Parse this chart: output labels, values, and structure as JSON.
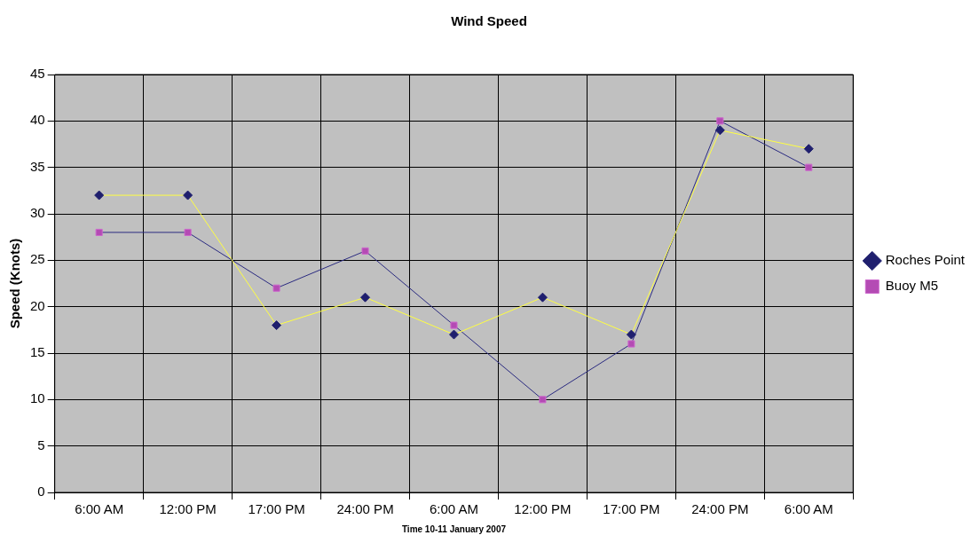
{
  "chart_data": {
    "type": "line",
    "title": "Wind Speed",
    "xlabel": "Time 10-11 January 2007",
    "ylabel": "Speed (Knots)",
    "categories": [
      "6:00 AM",
      "12:00 PM",
      "17:00 PM",
      "24:00 PM",
      "6:00 AM",
      "12:00 PM",
      "17:00 PM",
      "24:00 PM",
      "6:00 AM"
    ],
    "series": [
      {
        "name": "Roches Point",
        "color": "#1f1f6e",
        "marker": "diamond",
        "values": [
          32,
          32,
          18,
          21,
          17,
          21,
          17,
          39,
          37
        ]
      },
      {
        "name": "Buoy M5",
        "color": "#b44bb4",
        "marker": "square",
        "values": [
          28,
          28,
          22,
          26,
          18,
          10,
          16,
          40,
          35
        ]
      }
    ],
    "ylim": [
      0,
      45
    ],
    "yticks": [
      0,
      5,
      10,
      15,
      20,
      25,
      30,
      35,
      40,
      45
    ],
    "grid": true,
    "legend": "right",
    "line_style": "solid"
  }
}
